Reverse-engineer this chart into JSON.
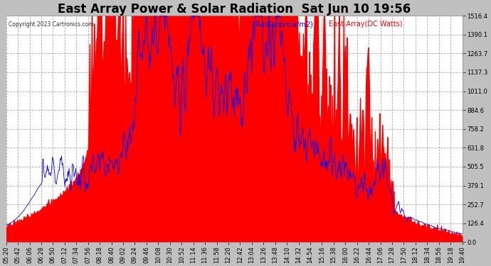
{
  "title": "East Array Power & Solar Radiation  Sat Jun 10 19:56",
  "copyright_text": "Copyright 2023 Cartronics.com",
  "legend_radiation": "Radiation(w/m2)",
  "legend_east_array": "East Array(DC Watts)",
  "y_ticks": [
    0.0,
    126.4,
    252.7,
    379.1,
    505.5,
    631.8,
    758.2,
    884.6,
    1011.0,
    1137.3,
    1263.7,
    1390.1,
    1516.4
  ],
  "y_max": 1516.4,
  "y_min": 0.0,
  "fig_bg": "#c0c0c0",
  "plot_bg": "#ffffff",
  "red_color": "#ff0000",
  "blue_color": "#0000ff",
  "title_fontsize": 12,
  "label_fontsize": 7,
  "tick_fontsize": 6,
  "x_labels": [
    "05:20",
    "05:42",
    "06:06",
    "06:28",
    "06:50",
    "07:12",
    "07:34",
    "07:56",
    "08:18",
    "08:40",
    "09:02",
    "09:24",
    "09:46",
    "10:08",
    "10:30",
    "10:52",
    "11:14",
    "11:36",
    "11:58",
    "12:20",
    "12:42",
    "13:04",
    "13:26",
    "13:48",
    "14:10",
    "14:32",
    "14:54",
    "15:16",
    "15:38",
    "16:00",
    "16:22",
    "16:44",
    "17:06",
    "17:28",
    "17:50",
    "18:12",
    "18:34",
    "18:56",
    "19:18",
    "19:40"
  ],
  "dashed_grid_color": "#aaaaaa",
  "grid_linestyle": "--"
}
